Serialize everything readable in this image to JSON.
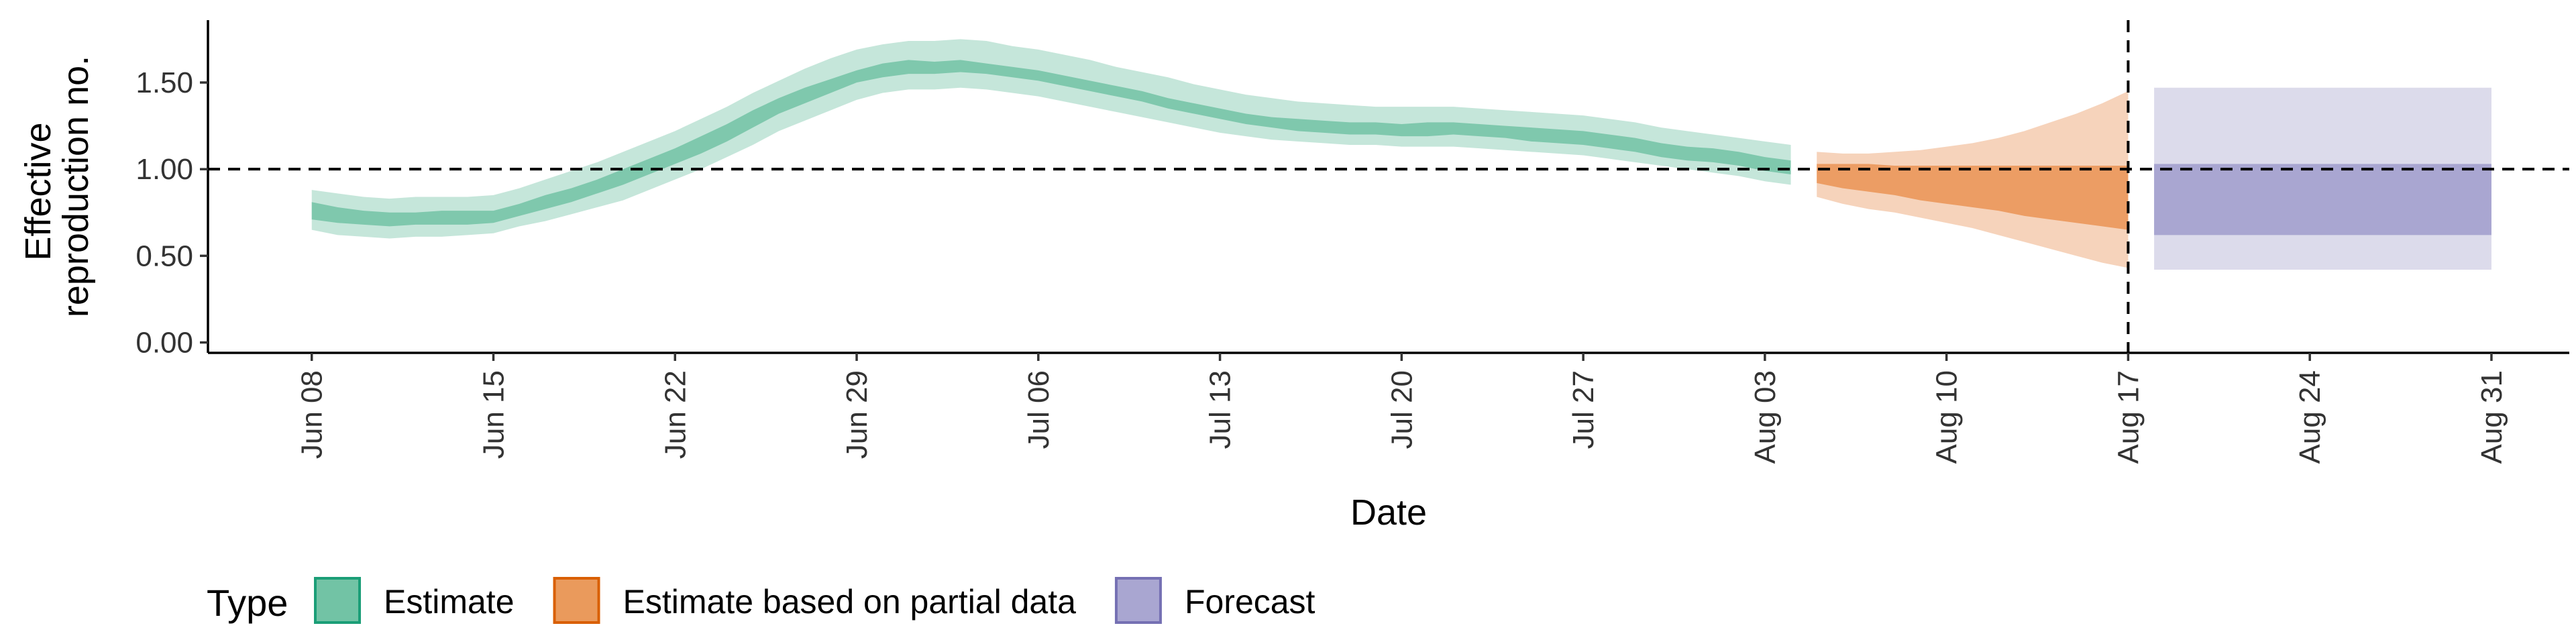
{
  "chart_data": {
    "type": "area",
    "xlabel": "Date",
    "ylabel_lines": [
      "Effective",
      "reproduction no."
    ],
    "x_domain": [
      "2020-06-04",
      "2020-09-03"
    ],
    "ylim": [
      -0.06,
      1.86
    ],
    "y_ticks": [
      0.0,
      0.5,
      1.0,
      1.5
    ],
    "y_tick_labels": [
      "0.00",
      "0.50",
      "1.00",
      "1.50"
    ],
    "x_ticks": [
      {
        "date": "2020-06-08",
        "label": "Jun 08"
      },
      {
        "date": "2020-06-15",
        "label": "Jun 15"
      },
      {
        "date": "2020-06-22",
        "label": "Jun 22"
      },
      {
        "date": "2020-06-29",
        "label": "Jun 29"
      },
      {
        "date": "2020-07-06",
        "label": "Jul 06"
      },
      {
        "date": "2020-07-13",
        "label": "Jul 13"
      },
      {
        "date": "2020-07-20",
        "label": "Jul 20"
      },
      {
        "date": "2020-07-27",
        "label": "Jul 27"
      },
      {
        "date": "2020-08-03",
        "label": "Aug 03"
      },
      {
        "date": "2020-08-10",
        "label": "Aug 10"
      },
      {
        "date": "2020-08-17",
        "label": "Aug 17"
      },
      {
        "date": "2020-08-24",
        "label": "Aug 24"
      },
      {
        "date": "2020-08-31",
        "label": "Aug 31"
      }
    ],
    "reference_line_y": 1.0,
    "reference_line_x": "2020-08-17",
    "grid": false,
    "legend_position": "bottom",
    "legend_title": "Type",
    "series": [
      {
        "name": "Estimate",
        "color_inner": "#7fc8ad",
        "color_outer": "#c5e6da",
        "dates": [
          "2020-06-08",
          "2020-06-09",
          "2020-06-10",
          "2020-06-11",
          "2020-06-12",
          "2020-06-13",
          "2020-06-14",
          "2020-06-15",
          "2020-06-16",
          "2020-06-17",
          "2020-06-18",
          "2020-06-19",
          "2020-06-20",
          "2020-06-21",
          "2020-06-22",
          "2020-06-23",
          "2020-06-24",
          "2020-06-25",
          "2020-06-26",
          "2020-06-27",
          "2020-06-28",
          "2020-06-29",
          "2020-06-30",
          "2020-07-01",
          "2020-07-02",
          "2020-07-03",
          "2020-07-04",
          "2020-07-05",
          "2020-07-06",
          "2020-07-07",
          "2020-07-08",
          "2020-07-09",
          "2020-07-10",
          "2020-07-11",
          "2020-07-12",
          "2020-07-13",
          "2020-07-14",
          "2020-07-15",
          "2020-07-16",
          "2020-07-17",
          "2020-07-18",
          "2020-07-19",
          "2020-07-20",
          "2020-07-21",
          "2020-07-22",
          "2020-07-23",
          "2020-07-24",
          "2020-07-25",
          "2020-07-26",
          "2020-07-27",
          "2020-07-28",
          "2020-07-29",
          "2020-07-30",
          "2020-07-31",
          "2020-08-01",
          "2020-08-02",
          "2020-08-03",
          "2020-08-04"
        ],
        "lower90": [
          0.65,
          0.62,
          0.61,
          0.6,
          0.61,
          0.61,
          0.62,
          0.63,
          0.67,
          0.7,
          0.74,
          0.78,
          0.82,
          0.88,
          0.94,
          1.0,
          1.07,
          1.14,
          1.22,
          1.28,
          1.34,
          1.4,
          1.44,
          1.46,
          1.46,
          1.47,
          1.46,
          1.44,
          1.42,
          1.39,
          1.36,
          1.33,
          1.3,
          1.27,
          1.24,
          1.21,
          1.19,
          1.17,
          1.16,
          1.15,
          1.14,
          1.14,
          1.13,
          1.13,
          1.13,
          1.12,
          1.11,
          1.1,
          1.09,
          1.08,
          1.06,
          1.04,
          1.02,
          1.0,
          0.98,
          0.96,
          0.93,
          0.91
        ],
        "lower50": [
          0.71,
          0.69,
          0.68,
          0.67,
          0.68,
          0.68,
          0.68,
          0.69,
          0.73,
          0.77,
          0.81,
          0.86,
          0.91,
          0.97,
          1.03,
          1.09,
          1.16,
          1.24,
          1.32,
          1.38,
          1.44,
          1.5,
          1.53,
          1.55,
          1.55,
          1.56,
          1.55,
          1.53,
          1.51,
          1.48,
          1.45,
          1.42,
          1.39,
          1.35,
          1.32,
          1.29,
          1.26,
          1.24,
          1.22,
          1.21,
          1.2,
          1.2,
          1.19,
          1.19,
          1.2,
          1.19,
          1.18,
          1.16,
          1.15,
          1.14,
          1.12,
          1.1,
          1.07,
          1.05,
          1.04,
          1.02,
          0.99,
          0.97
        ],
        "upper50": [
          0.81,
          0.78,
          0.76,
          0.75,
          0.75,
          0.76,
          0.76,
          0.76,
          0.8,
          0.85,
          0.89,
          0.94,
          1.0,
          1.06,
          1.12,
          1.19,
          1.26,
          1.34,
          1.41,
          1.47,
          1.52,
          1.57,
          1.61,
          1.63,
          1.62,
          1.63,
          1.61,
          1.59,
          1.57,
          1.54,
          1.51,
          1.48,
          1.45,
          1.41,
          1.38,
          1.35,
          1.32,
          1.3,
          1.29,
          1.28,
          1.27,
          1.27,
          1.26,
          1.27,
          1.27,
          1.26,
          1.25,
          1.24,
          1.23,
          1.22,
          1.2,
          1.18,
          1.15,
          1.13,
          1.12,
          1.1,
          1.07,
          1.05
        ],
        "upper90": [
          0.88,
          0.86,
          0.84,
          0.83,
          0.84,
          0.84,
          0.84,
          0.85,
          0.89,
          0.94,
          0.99,
          1.04,
          1.1,
          1.16,
          1.22,
          1.29,
          1.36,
          1.44,
          1.51,
          1.58,
          1.64,
          1.69,
          1.72,
          1.74,
          1.74,
          1.75,
          1.74,
          1.71,
          1.69,
          1.66,
          1.63,
          1.59,
          1.56,
          1.53,
          1.49,
          1.46,
          1.43,
          1.41,
          1.39,
          1.38,
          1.37,
          1.36,
          1.36,
          1.36,
          1.36,
          1.35,
          1.34,
          1.33,
          1.32,
          1.31,
          1.29,
          1.27,
          1.24,
          1.22,
          1.2,
          1.18,
          1.16,
          1.14
        ]
      },
      {
        "name": "Estimate based on partial data",
        "color_inner": "#ec9d64",
        "color_outer": "#f6d3bb",
        "dates": [
          "2020-08-05",
          "2020-08-06",
          "2020-08-07",
          "2020-08-08",
          "2020-08-09",
          "2020-08-10",
          "2020-08-11",
          "2020-08-12",
          "2020-08-13",
          "2020-08-14",
          "2020-08-15",
          "2020-08-16",
          "2020-08-17"
        ],
        "lower90": [
          0.84,
          0.8,
          0.77,
          0.75,
          0.72,
          0.69,
          0.66,
          0.62,
          0.58,
          0.54,
          0.5,
          0.46,
          0.43
        ],
        "lower50": [
          0.92,
          0.89,
          0.87,
          0.85,
          0.82,
          0.8,
          0.78,
          0.76,
          0.73,
          0.71,
          0.69,
          0.67,
          0.65
        ],
        "upper50": [
          1.03,
          1.03,
          1.03,
          1.02,
          1.02,
          1.02,
          1.02,
          1.02,
          1.02,
          1.02,
          1.02,
          1.02,
          1.02
        ],
        "upper90": [
          1.1,
          1.09,
          1.09,
          1.1,
          1.11,
          1.13,
          1.15,
          1.18,
          1.22,
          1.27,
          1.32,
          1.38,
          1.45
        ]
      },
      {
        "name": "Forecast",
        "color_inner": "#a9a6d1",
        "color_outer": "#dcdbeb",
        "start": "2020-08-18",
        "end": "2020-08-31",
        "lower90": 0.42,
        "lower50": 0.62,
        "upper50": 1.03,
        "upper90": 1.47
      }
    ],
    "legend_items": [
      {
        "label": "Estimate",
        "fill": "#72c3a5",
        "stroke": "#1b9e77"
      },
      {
        "label": "Estimate based on partial data",
        "fill": "#ea9a5c",
        "stroke": "#d95f02"
      },
      {
        "label": "Forecast",
        "fill": "#a9a6d1",
        "stroke": "#7570b3"
      }
    ]
  }
}
